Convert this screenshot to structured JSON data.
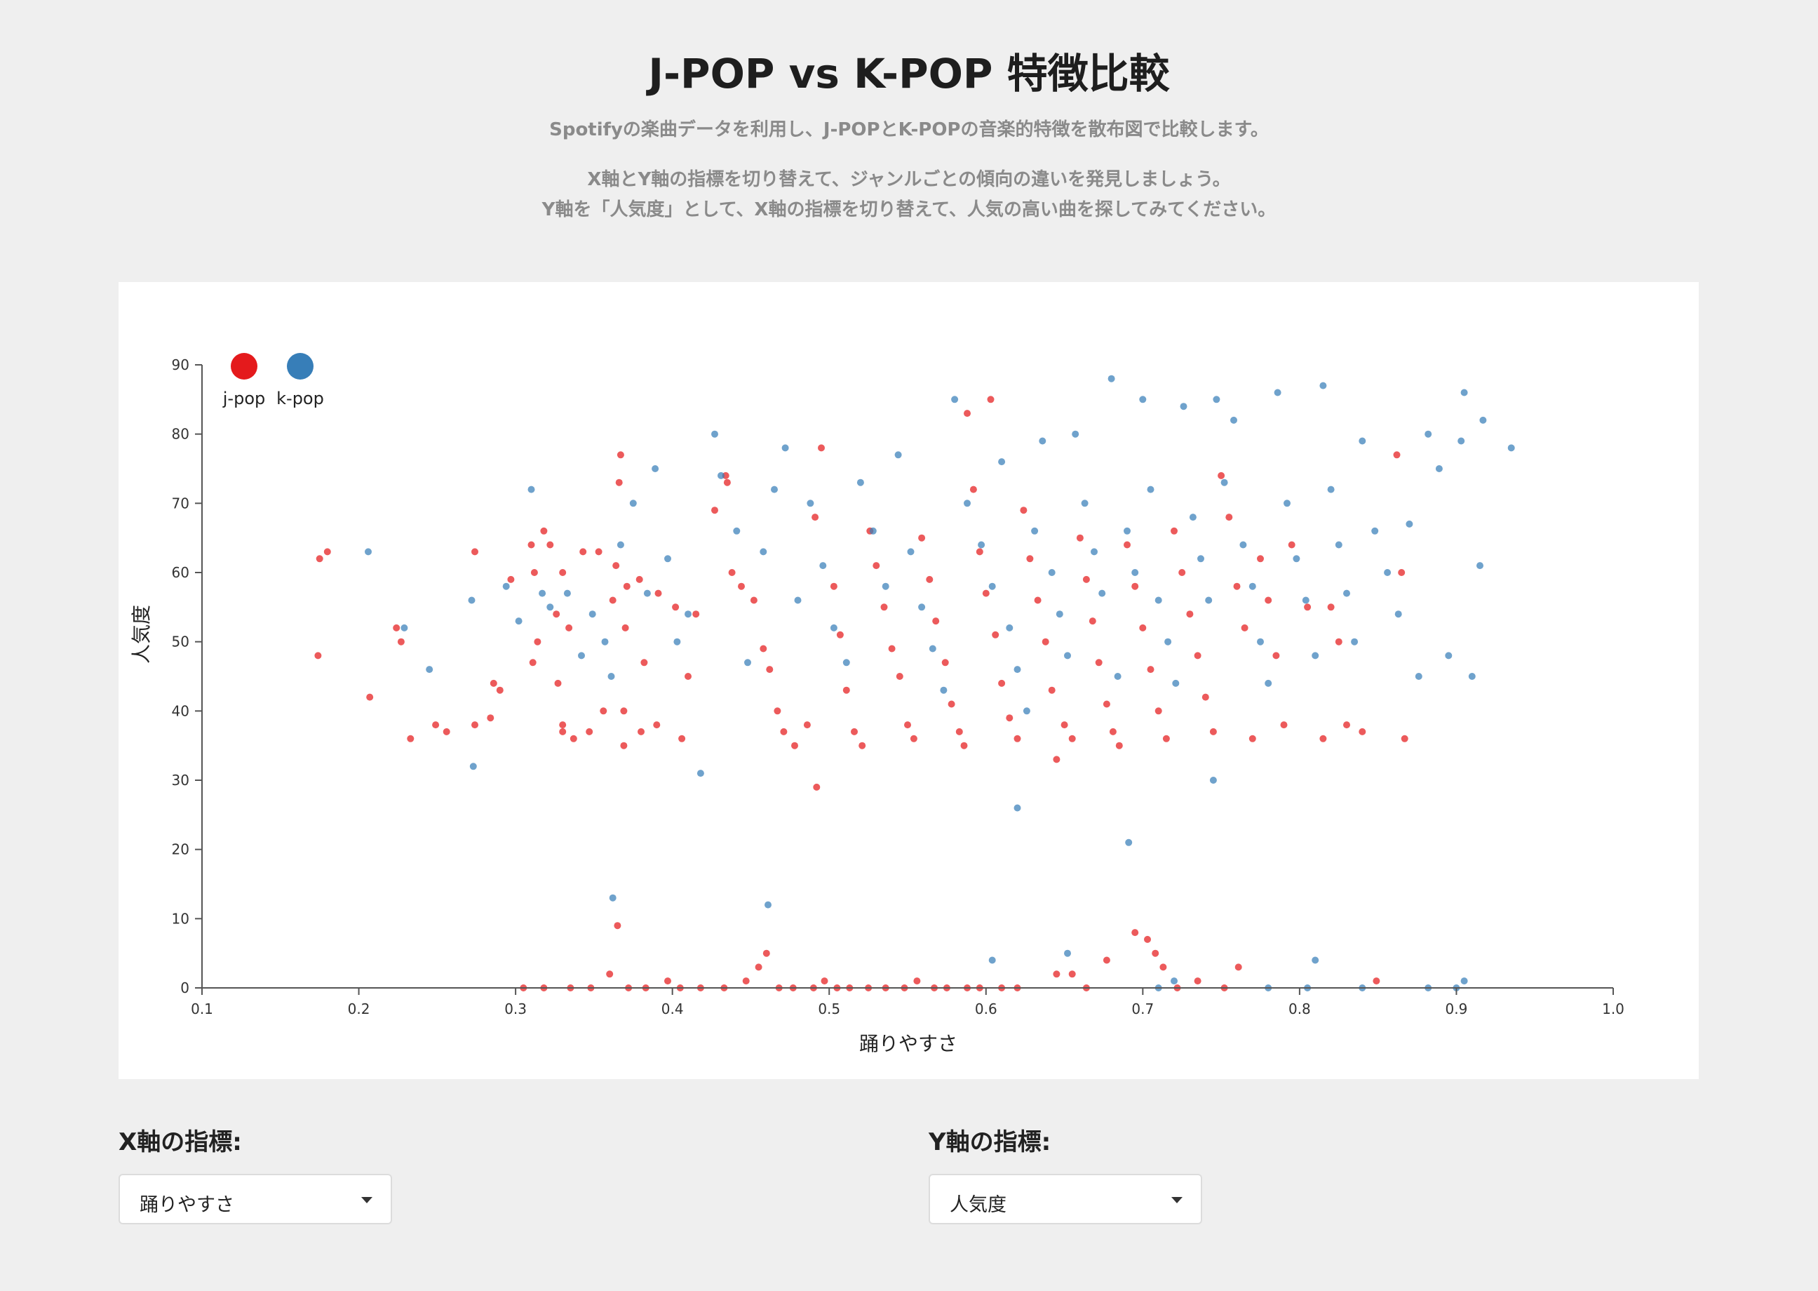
{
  "header": {
    "title": "J-POP vs K-POP 特徴比較",
    "description_1": "Spotifyの楽曲データを利用し、J-POPとK-POPの音楽的特徴を散布図で比較します。",
    "description_2": "X軸とY軸の指標を切り替えて、ジャンルごとの傾向の違いを発見しましょう。",
    "description_3": "Y軸を「人気度」として、X軸の指標を切り替えて、人気の高い曲を探してみてください。"
  },
  "controls": {
    "x_label": "X軸の指標:",
    "x_selected": "踊りやすさ",
    "y_label": "Y軸の指標:",
    "y_selected": "人気度"
  },
  "chart_data": {
    "type": "scatter",
    "title": "",
    "xlabel": "踊りやすさ",
    "ylabel": "人気度",
    "xlim": [
      0.1,
      1.0
    ],
    "ylim": [
      0,
      90
    ],
    "x_ticks": [
      "0.1",
      "0.2",
      "0.3",
      "0.4",
      "0.5",
      "0.6",
      "0.7",
      "0.8",
      "0.9",
      "1.0"
    ],
    "y_ticks": [
      "0",
      "10",
      "20",
      "30",
      "40",
      "50",
      "60",
      "70",
      "80",
      "90"
    ],
    "grid": false,
    "legend": "top-left",
    "series": [
      {
        "name": "j-pop",
        "color": "#e41a1c",
        "points": [
          [
            0.175,
            62
          ],
          [
            0.18,
            63
          ],
          [
            0.174,
            48
          ],
          [
            0.207,
            42
          ],
          [
            0.224,
            52
          ],
          [
            0.227,
            50
          ],
          [
            0.233,
            36
          ],
          [
            0.249,
            38
          ],
          [
            0.256,
            37
          ],
          [
            0.274,
            63
          ],
          [
            0.274,
            38
          ],
          [
            0.284,
            39
          ],
          [
            0.286,
            44
          ],
          [
            0.29,
            43
          ],
          [
            0.297,
            59
          ],
          [
            0.31,
            64
          ],
          [
            0.312,
            60
          ],
          [
            0.311,
            47
          ],
          [
            0.318,
            66
          ],
          [
            0.314,
            50
          ],
          [
            0.322,
            64
          ],
          [
            0.33,
            60
          ],
          [
            0.326,
            54
          ],
          [
            0.334,
            52
          ],
          [
            0.327,
            44
          ],
          [
            0.33,
            37
          ],
          [
            0.33,
            38
          ],
          [
            0.337,
            36
          ],
          [
            0.343,
            63
          ],
          [
            0.347,
            37
          ],
          [
            0.353,
            63
          ],
          [
            0.356,
            40
          ],
          [
            0.362,
            56
          ],
          [
            0.367,
            77
          ],
          [
            0.366,
            73
          ],
          [
            0.364,
            61
          ],
          [
            0.371,
            58
          ],
          [
            0.37,
            52
          ],
          [
            0.369,
            40
          ],
          [
            0.369,
            35
          ],
          [
            0.379,
            59
          ],
          [
            0.38,
            37
          ],
          [
            0.382,
            47
          ],
          [
            0.391,
            57
          ],
          [
            0.39,
            38
          ],
          [
            0.402,
            55
          ],
          [
            0.41,
            45
          ],
          [
            0.406,
            36
          ],
          [
            0.415,
            54
          ],
          [
            0.427,
            69
          ],
          [
            0.434,
            74
          ],
          [
            0.435,
            73
          ],
          [
            0.438,
            60
          ],
          [
            0.444,
            58
          ],
          [
            0.452,
            56
          ],
          [
            0.458,
            49
          ],
          [
            0.462,
            46
          ],
          [
            0.467,
            40
          ],
          [
            0.471,
            37
          ],
          [
            0.478,
            35
          ],
          [
            0.486,
            38
          ],
          [
            0.491,
            68
          ],
          [
            0.495,
            78
          ],
          [
            0.503,
            58
          ],
          [
            0.507,
            51
          ],
          [
            0.511,
            43
          ],
          [
            0.516,
            37
          ],
          [
            0.521,
            35
          ],
          [
            0.526,
            66
          ],
          [
            0.53,
            61
          ],
          [
            0.535,
            55
          ],
          [
            0.54,
            49
          ],
          [
            0.545,
            45
          ],
          [
            0.55,
            38
          ],
          [
            0.554,
            36
          ],
          [
            0.559,
            65
          ],
          [
            0.564,
            59
          ],
          [
            0.568,
            53
          ],
          [
            0.574,
            47
          ],
          [
            0.578,
            41
          ],
          [
            0.583,
            37
          ],
          [
            0.586,
            35
          ],
          [
            0.588,
            83
          ],
          [
            0.592,
            72
          ],
          [
            0.596,
            63
          ],
          [
            0.6,
            57
          ],
          [
            0.603,
            85
          ],
          [
            0.606,
            51
          ],
          [
            0.61,
            44
          ],
          [
            0.615,
            39
          ],
          [
            0.62,
            36
          ],
          [
            0.624,
            69
          ],
          [
            0.628,
            62
          ],
          [
            0.633,
            56
          ],
          [
            0.638,
            50
          ],
          [
            0.642,
            43
          ],
          [
            0.645,
            33
          ],
          [
            0.65,
            38
          ],
          [
            0.655,
            36
          ],
          [
            0.66,
            65
          ],
          [
            0.664,
            59
          ],
          [
            0.668,
            53
          ],
          [
            0.672,
            47
          ],
          [
            0.677,
            41
          ],
          [
            0.681,
            37
          ],
          [
            0.685,
            35
          ],
          [
            0.69,
            64
          ],
          [
            0.695,
            58
          ],
          [
            0.7,
            52
          ],
          [
            0.705,
            46
          ],
          [
            0.71,
            40
          ],
          [
            0.715,
            36
          ],
          [
            0.72,
            66
          ],
          [
            0.725,
            60
          ],
          [
            0.73,
            54
          ],
          [
            0.735,
            48
          ],
          [
            0.74,
            42
          ],
          [
            0.745,
            37
          ],
          [
            0.75,
            74
          ],
          [
            0.755,
            68
          ],
          [
            0.76,
            58
          ],
          [
            0.765,
            52
          ],
          [
            0.77,
            36
          ],
          [
            0.775,
            62
          ],
          [
            0.78,
            56
          ],
          [
            0.785,
            48
          ],
          [
            0.79,
            38
          ],
          [
            0.795,
            64
          ],
          [
            0.805,
            55
          ],
          [
            0.815,
            36
          ],
          [
            0.82,
            55
          ],
          [
            0.825,
            50
          ],
          [
            0.83,
            38
          ],
          [
            0.84,
            37
          ],
          [
            0.862,
            77
          ],
          [
            0.865,
            60
          ],
          [
            0.867,
            36
          ],
          [
            0.305,
            0
          ],
          [
            0.318,
            0
          ],
          [
            0.335,
            0
          ],
          [
            0.348,
            0
          ],
          [
            0.36,
            2
          ],
          [
            0.372,
            0
          ],
          [
            0.383,
            0
          ],
          [
            0.397,
            1
          ],
          [
            0.405,
            0
          ],
          [
            0.418,
            0
          ],
          [
            0.433,
            0
          ],
          [
            0.447,
            1
          ],
          [
            0.455,
            3
          ],
          [
            0.46,
            5
          ],
          [
            0.468,
            0
          ],
          [
            0.477,
            0
          ],
          [
            0.49,
            0
          ],
          [
            0.497,
            1
          ],
          [
            0.505,
            0
          ],
          [
            0.513,
            0
          ],
          [
            0.525,
            0
          ],
          [
            0.536,
            0
          ],
          [
            0.548,
            0
          ],
          [
            0.556,
            1
          ],
          [
            0.567,
            0
          ],
          [
            0.575,
            0
          ],
          [
            0.588,
            0
          ],
          [
            0.596,
            0
          ],
          [
            0.61,
            0
          ],
          [
            0.62,
            0
          ],
          [
            0.645,
            2
          ],
          [
            0.655,
            2
          ],
          [
            0.664,
            0
          ],
          [
            0.677,
            4
          ],
          [
            0.695,
            8
          ],
          [
            0.703,
            7
          ],
          [
            0.708,
            5
          ],
          [
            0.713,
            3
          ],
          [
            0.722,
            0
          ],
          [
            0.735,
            1
          ],
          [
            0.752,
            0
          ],
          [
            0.761,
            3
          ],
          [
            0.849,
            1
          ],
          [
            0.365,
            9
          ],
          [
            0.492,
            29
          ]
        ]
      },
      {
        "name": "k-pop",
        "color": "#377eb8",
        "points": [
          [
            0.206,
            63
          ],
          [
            0.229,
            52
          ],
          [
            0.245,
            46
          ],
          [
            0.272,
            56
          ],
          [
            0.273,
            32
          ],
          [
            0.294,
            58
          ],
          [
            0.302,
            53
          ],
          [
            0.31,
            72
          ],
          [
            0.317,
            57
          ],
          [
            0.322,
            55
          ],
          [
            0.333,
            57
          ],
          [
            0.342,
            48
          ],
          [
            0.349,
            54
          ],
          [
            0.357,
            50
          ],
          [
            0.361,
            45
          ],
          [
            0.367,
            64
          ],
          [
            0.375,
            70
          ],
          [
            0.384,
            57
          ],
          [
            0.389,
            75
          ],
          [
            0.397,
            62
          ],
          [
            0.403,
            50
          ],
          [
            0.41,
            54
          ],
          [
            0.418,
            31
          ],
          [
            0.427,
            80
          ],
          [
            0.431,
            74
          ],
          [
            0.441,
            66
          ],
          [
            0.448,
            47
          ],
          [
            0.458,
            63
          ],
          [
            0.465,
            72
          ],
          [
            0.472,
            78
          ],
          [
            0.48,
            56
          ],
          [
            0.488,
            70
          ],
          [
            0.496,
            61
          ],
          [
            0.503,
            52
          ],
          [
            0.511,
            47
          ],
          [
            0.52,
            73
          ],
          [
            0.528,
            66
          ],
          [
            0.536,
            58
          ],
          [
            0.544,
            77
          ],
          [
            0.552,
            63
          ],
          [
            0.559,
            55
          ],
          [
            0.566,
            49
          ],
          [
            0.573,
            43
          ],
          [
            0.58,
            85
          ],
          [
            0.588,
            70
          ],
          [
            0.597,
            64
          ],
          [
            0.604,
            58
          ],
          [
            0.61,
            76
          ],
          [
            0.615,
            52
          ],
          [
            0.62,
            46
          ],
          [
            0.626,
            40
          ],
          [
            0.631,
            66
          ],
          [
            0.636,
            79
          ],
          [
            0.642,
            60
          ],
          [
            0.647,
            54
          ],
          [
            0.652,
            48
          ],
          [
            0.657,
            80
          ],
          [
            0.663,
            70
          ],
          [
            0.669,
            63
          ],
          [
            0.674,
            57
          ],
          [
            0.68,
            88
          ],
          [
            0.684,
            45
          ],
          [
            0.69,
            66
          ],
          [
            0.695,
            60
          ],
          [
            0.7,
            85
          ],
          [
            0.705,
            72
          ],
          [
            0.71,
            56
          ],
          [
            0.716,
            50
          ],
          [
            0.721,
            44
          ],
          [
            0.726,
            84
          ],
          [
            0.732,
            68
          ],
          [
            0.737,
            62
          ],
          [
            0.742,
            56
          ],
          [
            0.747,
            85
          ],
          [
            0.752,
            73
          ],
          [
            0.758,
            82
          ],
          [
            0.764,
            64
          ],
          [
            0.77,
            58
          ],
          [
            0.775,
            50
          ],
          [
            0.78,
            44
          ],
          [
            0.786,
            86
          ],
          [
            0.792,
            70
          ],
          [
            0.798,
            62
          ],
          [
            0.804,
            56
          ],
          [
            0.81,
            48
          ],
          [
            0.815,
            87
          ],
          [
            0.82,
            72
          ],
          [
            0.825,
            64
          ],
          [
            0.83,
            57
          ],
          [
            0.835,
            50
          ],
          [
            0.84,
            79
          ],
          [
            0.848,
            66
          ],
          [
            0.856,
            60
          ],
          [
            0.863,
            54
          ],
          [
            0.87,
            67
          ],
          [
            0.876,
            45
          ],
          [
            0.882,
            80
          ],
          [
            0.889,
            75
          ],
          [
            0.895,
            48
          ],
          [
            0.903,
            79
          ],
          [
            0.905,
            86
          ],
          [
            0.91,
            45
          ],
          [
            0.915,
            61
          ],
          [
            0.917,
            82
          ],
          [
            0.935,
            78
          ],
          [
            0.461,
            12
          ],
          [
            0.362,
            13
          ],
          [
            0.62,
            26
          ],
          [
            0.691,
            21
          ],
          [
            0.745,
            30
          ],
          [
            0.604,
            4
          ],
          [
            0.652,
            5
          ],
          [
            0.72,
            1
          ],
          [
            0.81,
            4
          ],
          [
            0.905,
            1
          ],
          [
            0.71,
            0
          ],
          [
            0.9,
            0
          ],
          [
            0.882,
            0
          ],
          [
            0.84,
            0
          ],
          [
            0.805,
            0
          ],
          [
            0.78,
            0
          ]
        ]
      }
    ]
  }
}
